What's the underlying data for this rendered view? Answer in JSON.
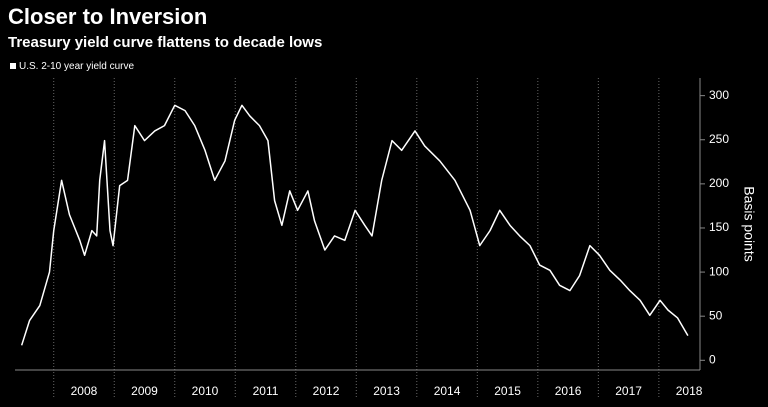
{
  "chart_data": {
    "type": "line",
    "title": "Closer to Inversion",
    "subtitle": "Treasury yield curve flattens to decade lows",
    "y_label": "Basis points",
    "x": [
      2007.47,
      2007.6,
      2007.77,
      2007.93,
      2008.0,
      2008.13,
      2008.26,
      2008.43,
      2008.51,
      2008.63,
      2008.71,
      2008.76,
      2008.84,
      2008.93,
      2008.98,
      2009.09,
      2009.22,
      2009.34,
      2009.5,
      2009.67,
      2009.83,
      2010.0,
      2010.17,
      2010.33,
      2010.5,
      2010.66,
      2010.83,
      2010.99,
      2011.11,
      2011.24,
      2011.4,
      2011.54,
      2011.65,
      2011.77,
      2011.9,
      2012.03,
      2012.2,
      2012.31,
      2012.48,
      2012.64,
      2012.81,
      2012.98,
      2013.14,
      2013.26,
      2013.42,
      2013.59,
      2013.75,
      2013.97,
      2014.13,
      2014.38,
      2014.63,
      2014.88,
      2015.04,
      2015.21,
      2015.37,
      2015.54,
      2015.7,
      2015.87,
      2016.03,
      2016.2,
      2016.36,
      2016.53,
      2016.69,
      2016.86,
      2017.02,
      2017.19,
      2017.36,
      2017.52,
      2017.69,
      2017.85,
      2018.02,
      2018.15,
      2018.31,
      2018.48
    ],
    "series": [
      {
        "name": "U.S. 2-10 year yield curve",
        "color": "#ffffff",
        "values": [
          17,
          45,
          62,
          100,
          147,
          204,
          165,
          136,
          119,
          147,
          141,
          204,
          249,
          147,
          130,
          198,
          204,
          266,
          249,
          260,
          266,
          289,
          283,
          266,
          238,
          204,
          226,
          272,
          289,
          277,
          266,
          249,
          181,
          153,
          192,
          170,
          192,
          158,
          125,
          141,
          136,
          170,
          153,
          141,
          204,
          249,
          238,
          260,
          243,
          226,
          204,
          170,
          130,
          147,
          170,
          153,
          141,
          130,
          108,
          102,
          85,
          79,
          96,
          130,
          119,
          102,
          91,
          79,
          68,
          51,
          68,
          57,
          48,
          28
        ]
      }
    ],
    "xlim": [
      2007.36,
      2018.68
    ],
    "xticks": [
      {
        "value": 2008,
        "label": "2008"
      },
      {
        "value": 2009,
        "label": "2009"
      },
      {
        "value": 2010,
        "label": "2010"
      },
      {
        "value": 2011,
        "label": "2011"
      },
      {
        "value": 2012,
        "label": "2012"
      },
      {
        "value": 2013,
        "label": "2013"
      },
      {
        "value": 2014,
        "label": "2014"
      },
      {
        "value": 2015,
        "label": "2015"
      },
      {
        "value": 2016,
        "label": "2016"
      },
      {
        "value": 2017,
        "label": "2017"
      },
      {
        "value": 2018,
        "label": "2018"
      }
    ],
    "ylim": [
      -11,
      320
    ],
    "yticks": [
      0,
      50,
      100,
      150,
      200,
      250,
      300
    ],
    "grid": "x",
    "legend": "top-left"
  }
}
